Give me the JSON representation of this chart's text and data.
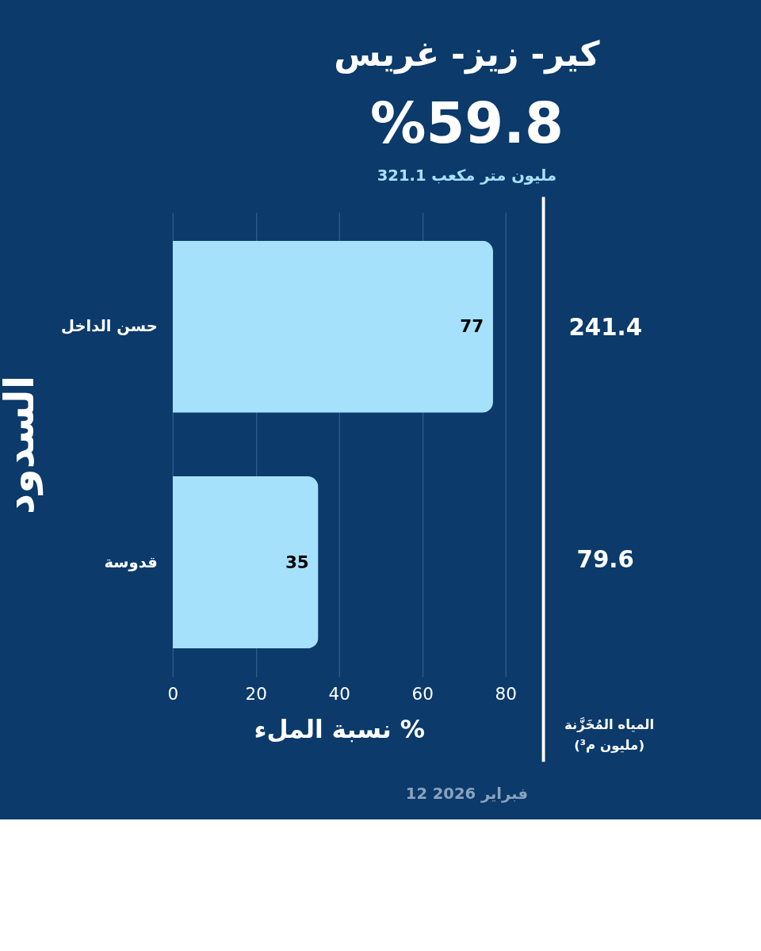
{
  "chart_data": {
    "type": "bar",
    "orientation": "horizontal",
    "title": "كير- زيز- غريس",
    "subtitle": "%59.8",
    "ylabel": "السدود",
    "xlabel": "نسبة الملء %",
    "categories": [
      "حسن الداخل",
      "قدوسة"
    ],
    "values": [
      77,
      35
    ],
    "color": "#a6e1fb",
    "data_labels": true,
    "xlim": [
      0,
      80
    ],
    "xticks": [
      0,
      20,
      40,
      60,
      80
    ],
    "grid": "x",
    "annotations": [
      "321.1 مليون متر مكعب",
      "المياه المُخَزَّنة\n(مليون م³)",
      "12 فبراير 2026",
      "241.4",
      "79.6"
    ]
  }
}
